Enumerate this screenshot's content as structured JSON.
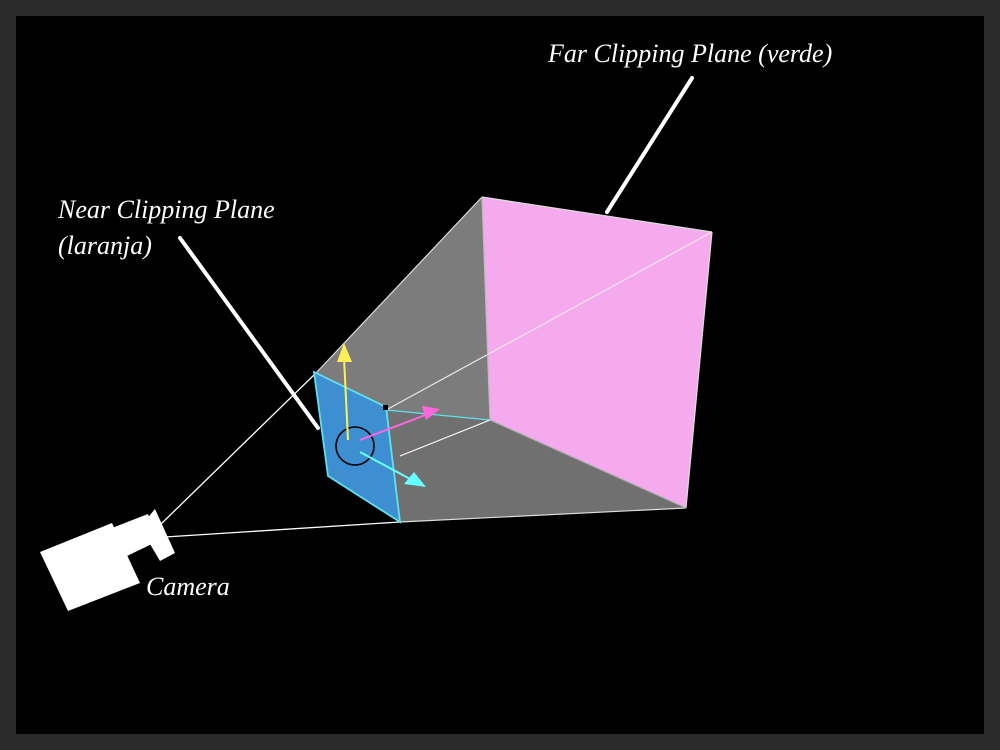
{
  "labels": {
    "far_plane": "Far Clipping Plane (verde)",
    "near_plane_line1": "Near Clipping Plane",
    "near_plane_line2": "(laranja)",
    "camera": "Camera"
  },
  "colors": {
    "background": "#000000",
    "frame": "#2a2a2a",
    "frustum_side": "#7a7a7a",
    "far_plane": "#f5aaee",
    "near_plane": "#3d8fd1",
    "edge_highlight": "#5fe0ee",
    "gizmo_y_axis": "#ffee55",
    "gizmo_x_axis": "#ff66dd",
    "gizmo_z_axis": "#66ffff",
    "camera_body": "#ffffff",
    "label_text": "#ffffff"
  },
  "icons": {
    "camera": "camera-icon",
    "transform_gizmo": "transform-gizmo-icon"
  }
}
